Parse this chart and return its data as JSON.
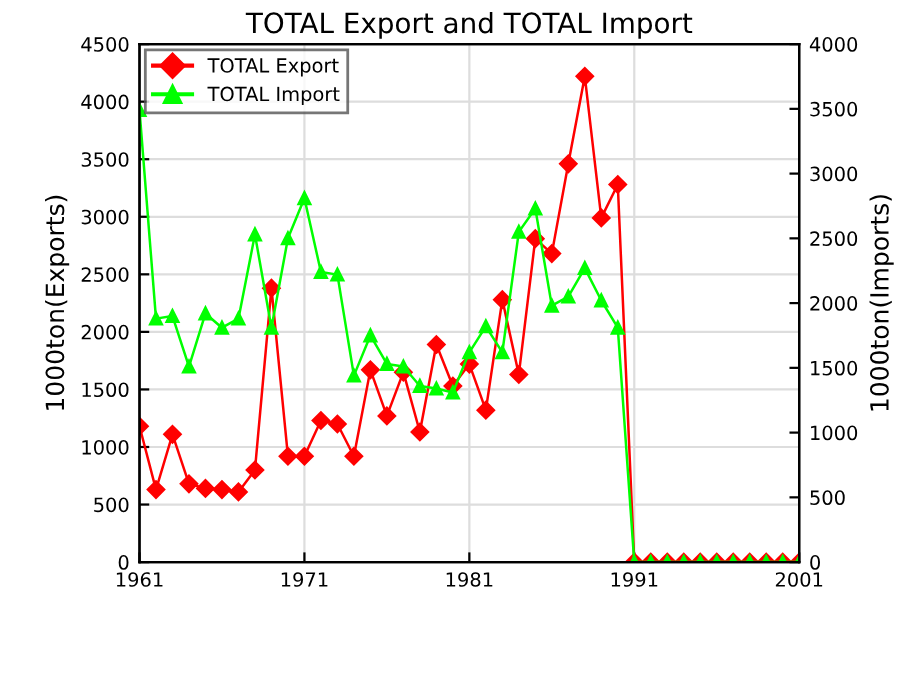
{
  "chart_data": {
    "type": "line",
    "title": "TOTAL Export and TOTAL Import",
    "ylabel": "1000ton(Exports)",
    "y2label": "1000ton(Imports)",
    "x": [
      1961,
      1962,
      1963,
      1964,
      1965,
      1966,
      1967,
      1968,
      1969,
      1970,
      1971,
      1972,
      1973,
      1974,
      1975,
      1976,
      1977,
      1978,
      1979,
      1980,
      1981,
      1982,
      1983,
      1984,
      1985,
      1986,
      1987,
      1988,
      1989,
      1990,
      1991,
      1992,
      1993,
      1994,
      1995,
      1996,
      1997,
      1998,
      1999,
      2000,
      2001
    ],
    "series": [
      {
        "name": "TOTAL Export",
        "color": "#ff0000",
        "marker": "diamond",
        "values": [
          1180,
          630,
          1110,
          680,
          640,
          630,
          610,
          800,
          2380,
          920,
          920,
          1230,
          1200,
          920,
          1670,
          1270,
          1650,
          1130,
          1890,
          1530,
          1720,
          1320,
          2280,
          1630,
          2810,
          2680,
          3460,
          4220,
          2990,
          3280,
          0,
          0,
          0,
          0,
          0,
          0,
          0,
          0,
          0,
          0,
          0
        ]
      },
      {
        "name": "TOTAL Import",
        "color": "#00ff00",
        "marker": "triangle",
        "axis": "y2",
        "values": [
          3490,
          1880,
          1900,
          1510,
          1920,
          1810,
          1880,
          2530,
          1810,
          2500,
          2810,
          2240,
          2220,
          1440,
          1750,
          1530,
          1510,
          1360,
          1340,
          1310,
          1620,
          1820,
          1620,
          2550,
          2730,
          1980,
          2050,
          2270,
          2020,
          1810,
          0,
          0,
          0,
          0,
          0,
          0,
          0,
          0,
          0,
          0,
          0
        ]
      }
    ],
    "xlim": [
      1961,
      2001
    ],
    "xticks": [
      1961,
      1971,
      1981,
      1991,
      2001
    ],
    "ylim": [
      0,
      4500
    ],
    "yticks": [
      0,
      500,
      1000,
      1500,
      2000,
      2500,
      3000,
      3500,
      4000,
      4500
    ],
    "y2lim": [
      0,
      4000
    ],
    "y2ticks": [
      0,
      500,
      1000,
      1500,
      2000,
      2500,
      3000,
      3500,
      4000
    ],
    "grid": true,
    "legend": "top left"
  }
}
